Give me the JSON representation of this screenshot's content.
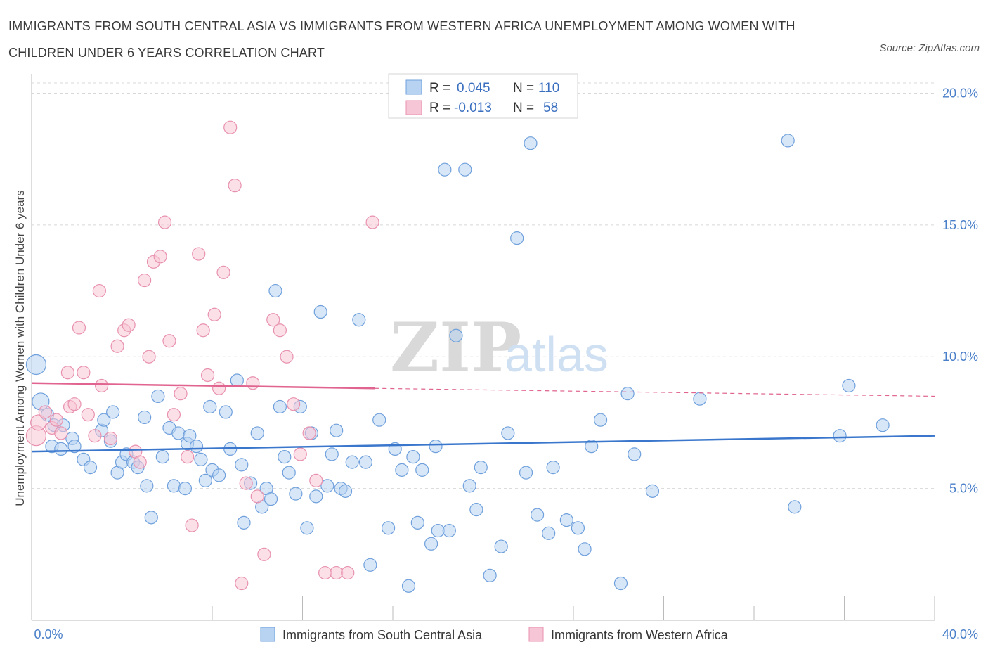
{
  "title": "IMMIGRANTS FROM SOUTH CENTRAL ASIA VS IMMIGRANTS FROM WESTERN AFRICA UNEMPLOYMENT AMONG WOMEN WITH CHILDREN UNDER 6 YEARS CORRELATION CHART",
  "source": "Source: ZipAtlas.com",
  "watermark": {
    "zip": "ZIP",
    "atlas": "atlas"
  },
  "colors": {
    "blue_fill": "#b8d3f2",
    "blue_stroke": "#6fa0dc",
    "blue_line": "#3a77cc",
    "pink_fill": "#f7c6d6",
    "pink_stroke": "#e891ae",
    "pink_line": "#e0648f",
    "grid": "#d8d8d8",
    "tick_text": "#4a7fc9"
  },
  "legend": {
    "rows": [
      {
        "r_label": "R =",
        "r_value": "0.045",
        "n_label": "N =",
        "n_value": "110"
      },
      {
        "r_label": "R =",
        "r_value": "-0.013",
        "n_label": "N =",
        "n_value": "58"
      }
    ]
  },
  "chart_data": {
    "type": "scatter",
    "title": "IMMIGRANTS FROM SOUTH CENTRAL ASIA VS IMMIGRANTS FROM WESTERN AFRICA UNEMPLOYMENT AMONG WOMEN WITH CHILDREN UNDER 6 YEARS CORRELATION CHART",
    "ylabel": "Unemployment Among Women with Children Under 6 years",
    "xlim": [
      0,
      40
    ],
    "ylim": [
      0,
      20.6
    ],
    "x_tick_labels": [
      "0.0%",
      "40.0%"
    ],
    "y_ticks": [
      5,
      10,
      15,
      20
    ],
    "y_tick_labels": [
      "5.0%",
      "10.0%",
      "15.0%",
      "20.0%"
    ],
    "grid": true,
    "legend_position": "top-center",
    "series": [
      {
        "name": "Immigrants from South Central Asia",
        "R": 0.045,
        "N": 110,
        "trend": {
          "x": [
            0,
            40
          ],
          "y": [
            6.4,
            7.0
          ]
        },
        "points": [
          [
            0.2,
            9.7,
            14
          ],
          [
            0.4,
            8.3,
            12
          ],
          [
            0.7,
            7.8,
            9
          ],
          [
            1.0,
            7.4,
            9
          ],
          [
            0.9,
            6.6,
            9
          ],
          [
            1.3,
            6.5,
            9
          ],
          [
            1.4,
            7.4,
            9
          ],
          [
            1.8,
            6.9,
            9
          ],
          [
            1.9,
            6.6,
            9
          ],
          [
            2.3,
            6.1,
            9
          ],
          [
            2.6,
            5.8,
            9
          ],
          [
            3.1,
            7.2,
            9
          ],
          [
            3.2,
            7.6,
            9
          ],
          [
            3.5,
            6.8,
            9
          ],
          [
            3.6,
            7.9,
            9
          ],
          [
            3.8,
            5.6,
            9
          ],
          [
            4.0,
            6.0,
            9
          ],
          [
            4.2,
            6.3,
            9
          ],
          [
            4.5,
            6.0,
            9
          ],
          [
            4.7,
            5.8,
            9
          ],
          [
            5.0,
            7.7,
            9
          ],
          [
            5.1,
            5.1,
            9
          ],
          [
            5.3,
            3.9,
            9
          ],
          [
            5.6,
            8.5,
            9
          ],
          [
            5.8,
            6.2,
            9
          ],
          [
            6.1,
            7.3,
            9
          ],
          [
            6.3,
            5.1,
            9
          ],
          [
            6.5,
            7.1,
            9
          ],
          [
            6.8,
            5.0,
            9
          ],
          [
            6.9,
            6.7,
            9
          ],
          [
            7.0,
            7.0,
            9
          ],
          [
            7.3,
            6.6,
            9
          ],
          [
            7.5,
            6.1,
            9
          ],
          [
            7.7,
            5.3,
            9
          ],
          [
            7.9,
            8.1,
            9
          ],
          [
            8.0,
            5.7,
            9
          ],
          [
            8.3,
            5.5,
            9
          ],
          [
            8.6,
            7.9,
            9
          ],
          [
            8.8,
            6.5,
            9
          ],
          [
            9.1,
            9.1,
            9
          ],
          [
            9.3,
            5.9,
            9
          ],
          [
            9.4,
            3.7,
            9
          ],
          [
            9.7,
            5.2,
            9
          ],
          [
            10.0,
            7.1,
            9
          ],
          [
            10.2,
            4.3,
            9
          ],
          [
            10.4,
            5.0,
            9
          ],
          [
            10.6,
            4.6,
            9
          ],
          [
            10.8,
            12.5,
            9
          ],
          [
            11.0,
            8.1,
            9
          ],
          [
            11.2,
            6.2,
            9
          ],
          [
            11.4,
            5.6,
            9
          ],
          [
            11.7,
            4.8,
            9
          ],
          [
            11.9,
            8.1,
            9
          ],
          [
            12.2,
            3.5,
            9
          ],
          [
            12.4,
            7.1,
            9
          ],
          [
            12.6,
            4.7,
            9
          ],
          [
            12.8,
            11.7,
            9
          ],
          [
            13.1,
            5.1,
            9
          ],
          [
            13.3,
            6.3,
            9
          ],
          [
            13.5,
            7.2,
            9
          ],
          [
            13.7,
            5.0,
            9
          ],
          [
            13.9,
            4.9,
            9
          ],
          [
            14.2,
            6.0,
            9
          ],
          [
            14.5,
            11.4,
            9
          ],
          [
            14.8,
            6.0,
            9
          ],
          [
            15.0,
            2.1,
            9
          ],
          [
            15.4,
            7.6,
            9
          ],
          [
            15.8,
            3.5,
            9
          ],
          [
            16.1,
            6.5,
            9
          ],
          [
            16.4,
            5.7,
            9
          ],
          [
            16.7,
            1.3,
            9
          ],
          [
            16.9,
            6.2,
            9
          ],
          [
            17.1,
            3.7,
            9
          ],
          [
            17.3,
            5.7,
            9
          ],
          [
            17.7,
            2.9,
            9
          ],
          [
            17.9,
            6.6,
            9
          ],
          [
            18.0,
            3.4,
            9
          ],
          [
            18.3,
            17.1,
            9
          ],
          [
            18.5,
            3.4,
            9
          ],
          [
            18.8,
            10.8,
            9
          ],
          [
            19.2,
            17.1,
            9
          ],
          [
            19.4,
            5.1,
            9
          ],
          [
            19.7,
            4.2,
            9
          ],
          [
            19.9,
            5.8,
            9
          ],
          [
            20.3,
            1.7,
            9
          ],
          [
            20.8,
            2.8,
            9
          ],
          [
            21.1,
            7.1,
            9
          ],
          [
            21.5,
            14.5,
            9
          ],
          [
            21.9,
            5.6,
            9
          ],
          [
            22.1,
            18.1,
            9
          ],
          [
            22.4,
            4.0,
            9
          ],
          [
            22.9,
            3.3,
            9
          ],
          [
            23.1,
            5.8,
            9
          ],
          [
            23.7,
            3.8,
            9
          ],
          [
            24.2,
            3.5,
            9
          ],
          [
            24.5,
            2.7,
            9
          ],
          [
            24.8,
            6.6,
            9
          ],
          [
            25.2,
            7.6,
            9
          ],
          [
            26.1,
            1.4,
            9
          ],
          [
            26.4,
            8.6,
            9
          ],
          [
            26.7,
            6.3,
            9
          ],
          [
            27.5,
            4.9,
            9
          ],
          [
            29.6,
            8.4,
            9
          ],
          [
            33.5,
            18.2,
            9
          ],
          [
            33.8,
            4.3,
            9
          ],
          [
            35.8,
            7.0,
            9
          ],
          [
            36.2,
            8.9,
            9
          ],
          [
            37.7,
            7.4,
            9
          ]
        ]
      },
      {
        "name": "Immigrants from Western Africa",
        "R": -0.013,
        "N": 58,
        "trend": {
          "x": [
            0,
            15.2
          ],
          "y": [
            9.0,
            8.8
          ]
        },
        "trend_dashed": {
          "x": [
            15.2,
            40
          ],
          "y": [
            8.8,
            8.5
          ]
        },
        "points": [
          [
            0.2,
            7.0,
            14
          ],
          [
            0.3,
            7.5,
            11
          ],
          [
            0.6,
            7.9,
            9
          ],
          [
            0.9,
            7.3,
            9
          ],
          [
            1.1,
            7.6,
            9
          ],
          [
            1.3,
            7.1,
            9
          ],
          [
            1.6,
            9.4,
            9
          ],
          [
            1.7,
            8.1,
            9
          ],
          [
            1.9,
            8.2,
            9
          ],
          [
            2.1,
            11.1,
            9
          ],
          [
            2.3,
            9.4,
            9
          ],
          [
            2.5,
            7.8,
            9
          ],
          [
            2.8,
            7.0,
            9
          ],
          [
            3.0,
            12.5,
            9
          ],
          [
            3.1,
            8.9,
            9
          ],
          [
            3.5,
            6.9,
            9
          ],
          [
            3.8,
            10.4,
            9
          ],
          [
            4.1,
            11.0,
            9
          ],
          [
            4.3,
            11.2,
            9
          ],
          [
            4.6,
            6.4,
            9
          ],
          [
            4.8,
            6.0,
            9
          ],
          [
            5.0,
            12.9,
            9
          ],
          [
            5.2,
            10.0,
            9
          ],
          [
            5.4,
            13.6,
            9
          ],
          [
            5.7,
            13.8,
            9
          ],
          [
            5.9,
            15.1,
            9
          ],
          [
            6.1,
            10.6,
            9
          ],
          [
            6.3,
            7.8,
            9
          ],
          [
            6.6,
            8.6,
            9
          ],
          [
            6.9,
            6.2,
            9
          ],
          [
            7.1,
            3.6,
            9
          ],
          [
            7.4,
            13.9,
            9
          ],
          [
            7.6,
            11.0,
            9
          ],
          [
            7.8,
            9.3,
            9
          ],
          [
            8.1,
            11.6,
            9
          ],
          [
            8.3,
            8.8,
            9
          ],
          [
            8.5,
            13.2,
            9
          ],
          [
            8.8,
            18.7,
            9
          ],
          [
            9.0,
            16.5,
            9
          ],
          [
            9.3,
            1.4,
            9
          ],
          [
            9.5,
            5.2,
            9
          ],
          [
            9.8,
            9.0,
            9
          ],
          [
            10.0,
            4.7,
            9
          ],
          [
            10.3,
            2.5,
            9
          ],
          [
            10.7,
            11.4,
            9
          ],
          [
            11.0,
            11.0,
            9
          ],
          [
            11.3,
            10.0,
            9
          ],
          [
            11.6,
            8.2,
            9
          ],
          [
            11.9,
            6.3,
            9
          ],
          [
            12.3,
            7.1,
            9
          ],
          [
            12.6,
            5.3,
            9
          ],
          [
            13.0,
            1.8,
            9
          ],
          [
            13.5,
            1.8,
            9
          ],
          [
            14.0,
            1.8,
            9
          ],
          [
            15.1,
            15.1,
            9
          ],
          [
            16.2,
            19.6,
            9
          ]
        ]
      }
    ]
  },
  "bottom_legend": [
    {
      "label": "Immigrants from South Central Asia"
    },
    {
      "label": "Immigrants from Western Africa"
    }
  ]
}
